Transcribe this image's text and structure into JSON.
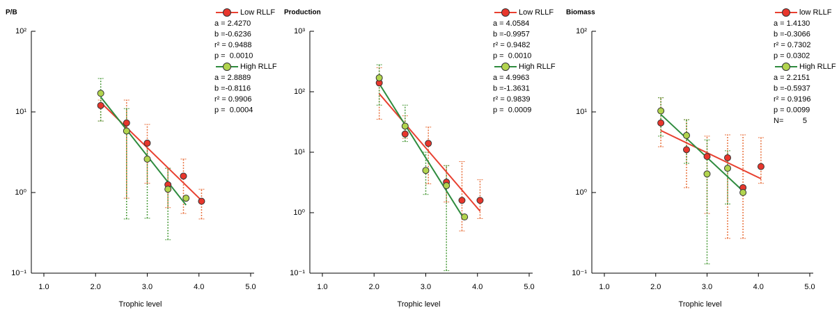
{
  "chart_data": [
    {
      "type": "scatter",
      "title": "P/B",
      "x_label": "Trophic level",
      "log_y": true,
      "xlim": [
        1,
        5
      ],
      "xticks": [
        {
          "value": 1,
          "label": "1.0"
        },
        {
          "value": 2,
          "label": "2.0"
        },
        {
          "value": 3,
          "label": "3.0"
        },
        {
          "value": 4,
          "label": "4.0"
        },
        {
          "value": 5,
          "label": "5.0"
        }
      ],
      "ylim": [
        0.1,
        100
      ],
      "yticks": [
        {
          "value": 0.1,
          "label": "10⁻¹"
        },
        {
          "value": 1,
          "label": "10⁰"
        },
        {
          "value": 10,
          "label": "10¹"
        },
        {
          "value": 100,
          "label": "10²"
        }
      ],
      "series": [
        {
          "name": "Low RLLF",
          "color": "#e8362c",
          "line_color": "#e84030",
          "err_color": "#e8703c",
          "x": [
            2.1,
            2.6,
            3.0,
            3.4,
            3.7,
            4.05
          ],
          "values": [
            12,
            7.3,
            4.1,
            1.25,
            1.6,
            0.78
          ],
          "ylow": [
            7.7,
            0.85,
            1.3,
            0.65,
            0.55,
            0.47
          ],
          "yhigh": [
            14,
            14,
            7,
            2,
            2.6,
            1.1
          ],
          "stats": [
            {
              "value": 2.427,
              "label": "a = 2.4270"
            },
            {
              "value": -0.6236,
              "label": "b =-0.6236"
            },
            "r² = 0.9488",
            "p =  0.0010"
          ]
        },
        {
          "name": "High RLLF",
          "color": "#b2d44e",
          "line_color": "#2e8b3e",
          "err_color": "#4a9a3a",
          "x": [
            2.1,
            2.6,
            3.0,
            3.4,
            3.75
          ],
          "values": [
            17,
            5.8,
            2.6,
            1.1,
            0.85
          ],
          "ylow": [
            7.7,
            0.47,
            0.48,
            0.26,
            null
          ],
          "yhigh": [
            26,
            11,
            4,
            2,
            null
          ],
          "stats": [
            {
              "value": 2.8889,
              "label": "a = 2.8889"
            },
            {
              "value": -0.8116,
              "label": "b =-0.8116"
            },
            "r² = 0.9906",
            "p =  0.0004"
          ]
        }
      ]
    },
    {
      "type": "scatter",
      "title": "Production",
      "x_label": "Trophic level",
      "log_y": true,
      "xlim": [
        1,
        5
      ],
      "xticks": [
        {
          "value": 1,
          "label": "1.0"
        },
        {
          "value": 2,
          "label": "2.0"
        },
        {
          "value": 3,
          "label": "3.0"
        },
        {
          "value": 4,
          "label": "4.0"
        },
        {
          "value": 5,
          "label": "5.0"
        }
      ],
      "ylim": [
        0.1,
        1000
      ],
      "yticks": [
        {
          "value": 0.1,
          "label": "10⁻¹"
        },
        {
          "value": 1,
          "label": "10⁰"
        },
        {
          "value": 10,
          "label": "10¹"
        },
        {
          "value": 100,
          "label": "10²"
        },
        {
          "value": 1000,
          "label": "10³"
        }
      ],
      "series": [
        {
          "name": "Low RLLF",
          "color": "#e8362c",
          "line_color": "#e84030",
          "err_color": "#e8703c",
          "x": [
            2.1,
            2.6,
            3.05,
            3.4,
            3.7,
            4.05
          ],
          "values": [
            140,
            20,
            14,
            3.2,
            1.6,
            1.6
          ],
          "ylow": [
            35,
            17,
            3,
            1.5,
            0.5,
            0.8
          ],
          "yhigh": [
            250,
            40,
            26,
            6,
            7,
            3.5
          ],
          "stats": [
            {
              "value": 4.0584,
              "label": "a = 4.0584"
            },
            {
              "value": -0.9957,
              "label": "b =-0.9957"
            },
            "r² = 0.9482",
            "p =  0.0010"
          ]
        },
        {
          "name": "High RLLF",
          "color": "#b2d44e",
          "line_color": "#2e8b3e",
          "err_color": "#4a9a3a",
          "x": [
            2.1,
            2.6,
            3.0,
            3.4,
            3.75
          ],
          "values": [
            170,
            27,
            5,
            2.8,
            0.85
          ],
          "ylow": [
            60,
            15,
            2,
            0.11,
            null
          ],
          "yhigh": [
            280,
            60,
            10,
            6,
            null
          ],
          "stats": [
            {
              "value": 4.9963,
              "label": "a = 4.9963"
            },
            {
              "value": -1.3631,
              "label": "b =-1.3631"
            },
            "r² = 0.9839",
            "p =  0.0009"
          ]
        }
      ]
    },
    {
      "type": "scatter",
      "title": "Biomass",
      "x_label": "Trophic level",
      "log_y": true,
      "xlim": [
        1,
        5
      ],
      "xticks": [
        {
          "value": 1,
          "label": "1.0"
        },
        {
          "value": 2,
          "label": "2.0"
        },
        {
          "value": 3,
          "label": "3.0"
        },
        {
          "value": 4,
          "label": "4.0"
        },
        {
          "value": 5,
          "label": "5.0"
        }
      ],
      "ylim": [
        0.1,
        100
      ],
      "yticks": [
        {
          "value": 0.1,
          "label": "10⁻¹"
        },
        {
          "value": 1,
          "label": "10⁰"
        },
        {
          "value": 10,
          "label": "10¹"
        },
        {
          "value": 100,
          "label": "10²"
        }
      ],
      "series": [
        {
          "name": "low RLLF",
          "color": "#e8362c",
          "line_color": "#e84030",
          "err_color": "#e8703c",
          "x": [
            2.1,
            2.6,
            3.0,
            3.4,
            3.7,
            4.05
          ],
          "values": [
            7.3,
            3.4,
            2.8,
            2.7,
            1.15,
            2.1
          ],
          "ylow": [
            3.7,
            1.15,
            0.55,
            0.27,
            0.27,
            1.3
          ],
          "yhigh": [
            15,
            8,
            5,
            5.2,
            5.2,
            4.8
          ],
          "stats": [
            {
              "value": 1.413,
              "label": "a = 1.4130"
            },
            {
              "value": -0.3066,
              "label": "b =-0.3066"
            },
            "r² = 0.7302",
            "p = 0.0302"
          ]
        },
        {
          "name": "High RLLF",
          "color": "#b2d44e",
          "line_color": "#2e8b3e",
          "err_color": "#4a9a3a",
          "x": [
            2.1,
            2.6,
            3.0,
            3.4,
            3.7
          ],
          "values": [
            10.3,
            5.1,
            1.7,
            2,
            1
          ],
          "ylow": [
            5,
            2.3,
            0.13,
            0.72,
            null
          ],
          "yhigh": [
            15,
            8,
            4.5,
            3.3,
            null
          ],
          "stats": [
            {
              "value": 2.2151,
              "label": "a = 2.2151"
            },
            {
              "value": -0.5937,
              "label": "b =-0.5937"
            },
            "r² = 0.9196",
            "p = 0.0099",
            "N=         5"
          ]
        }
      ]
    }
  ]
}
